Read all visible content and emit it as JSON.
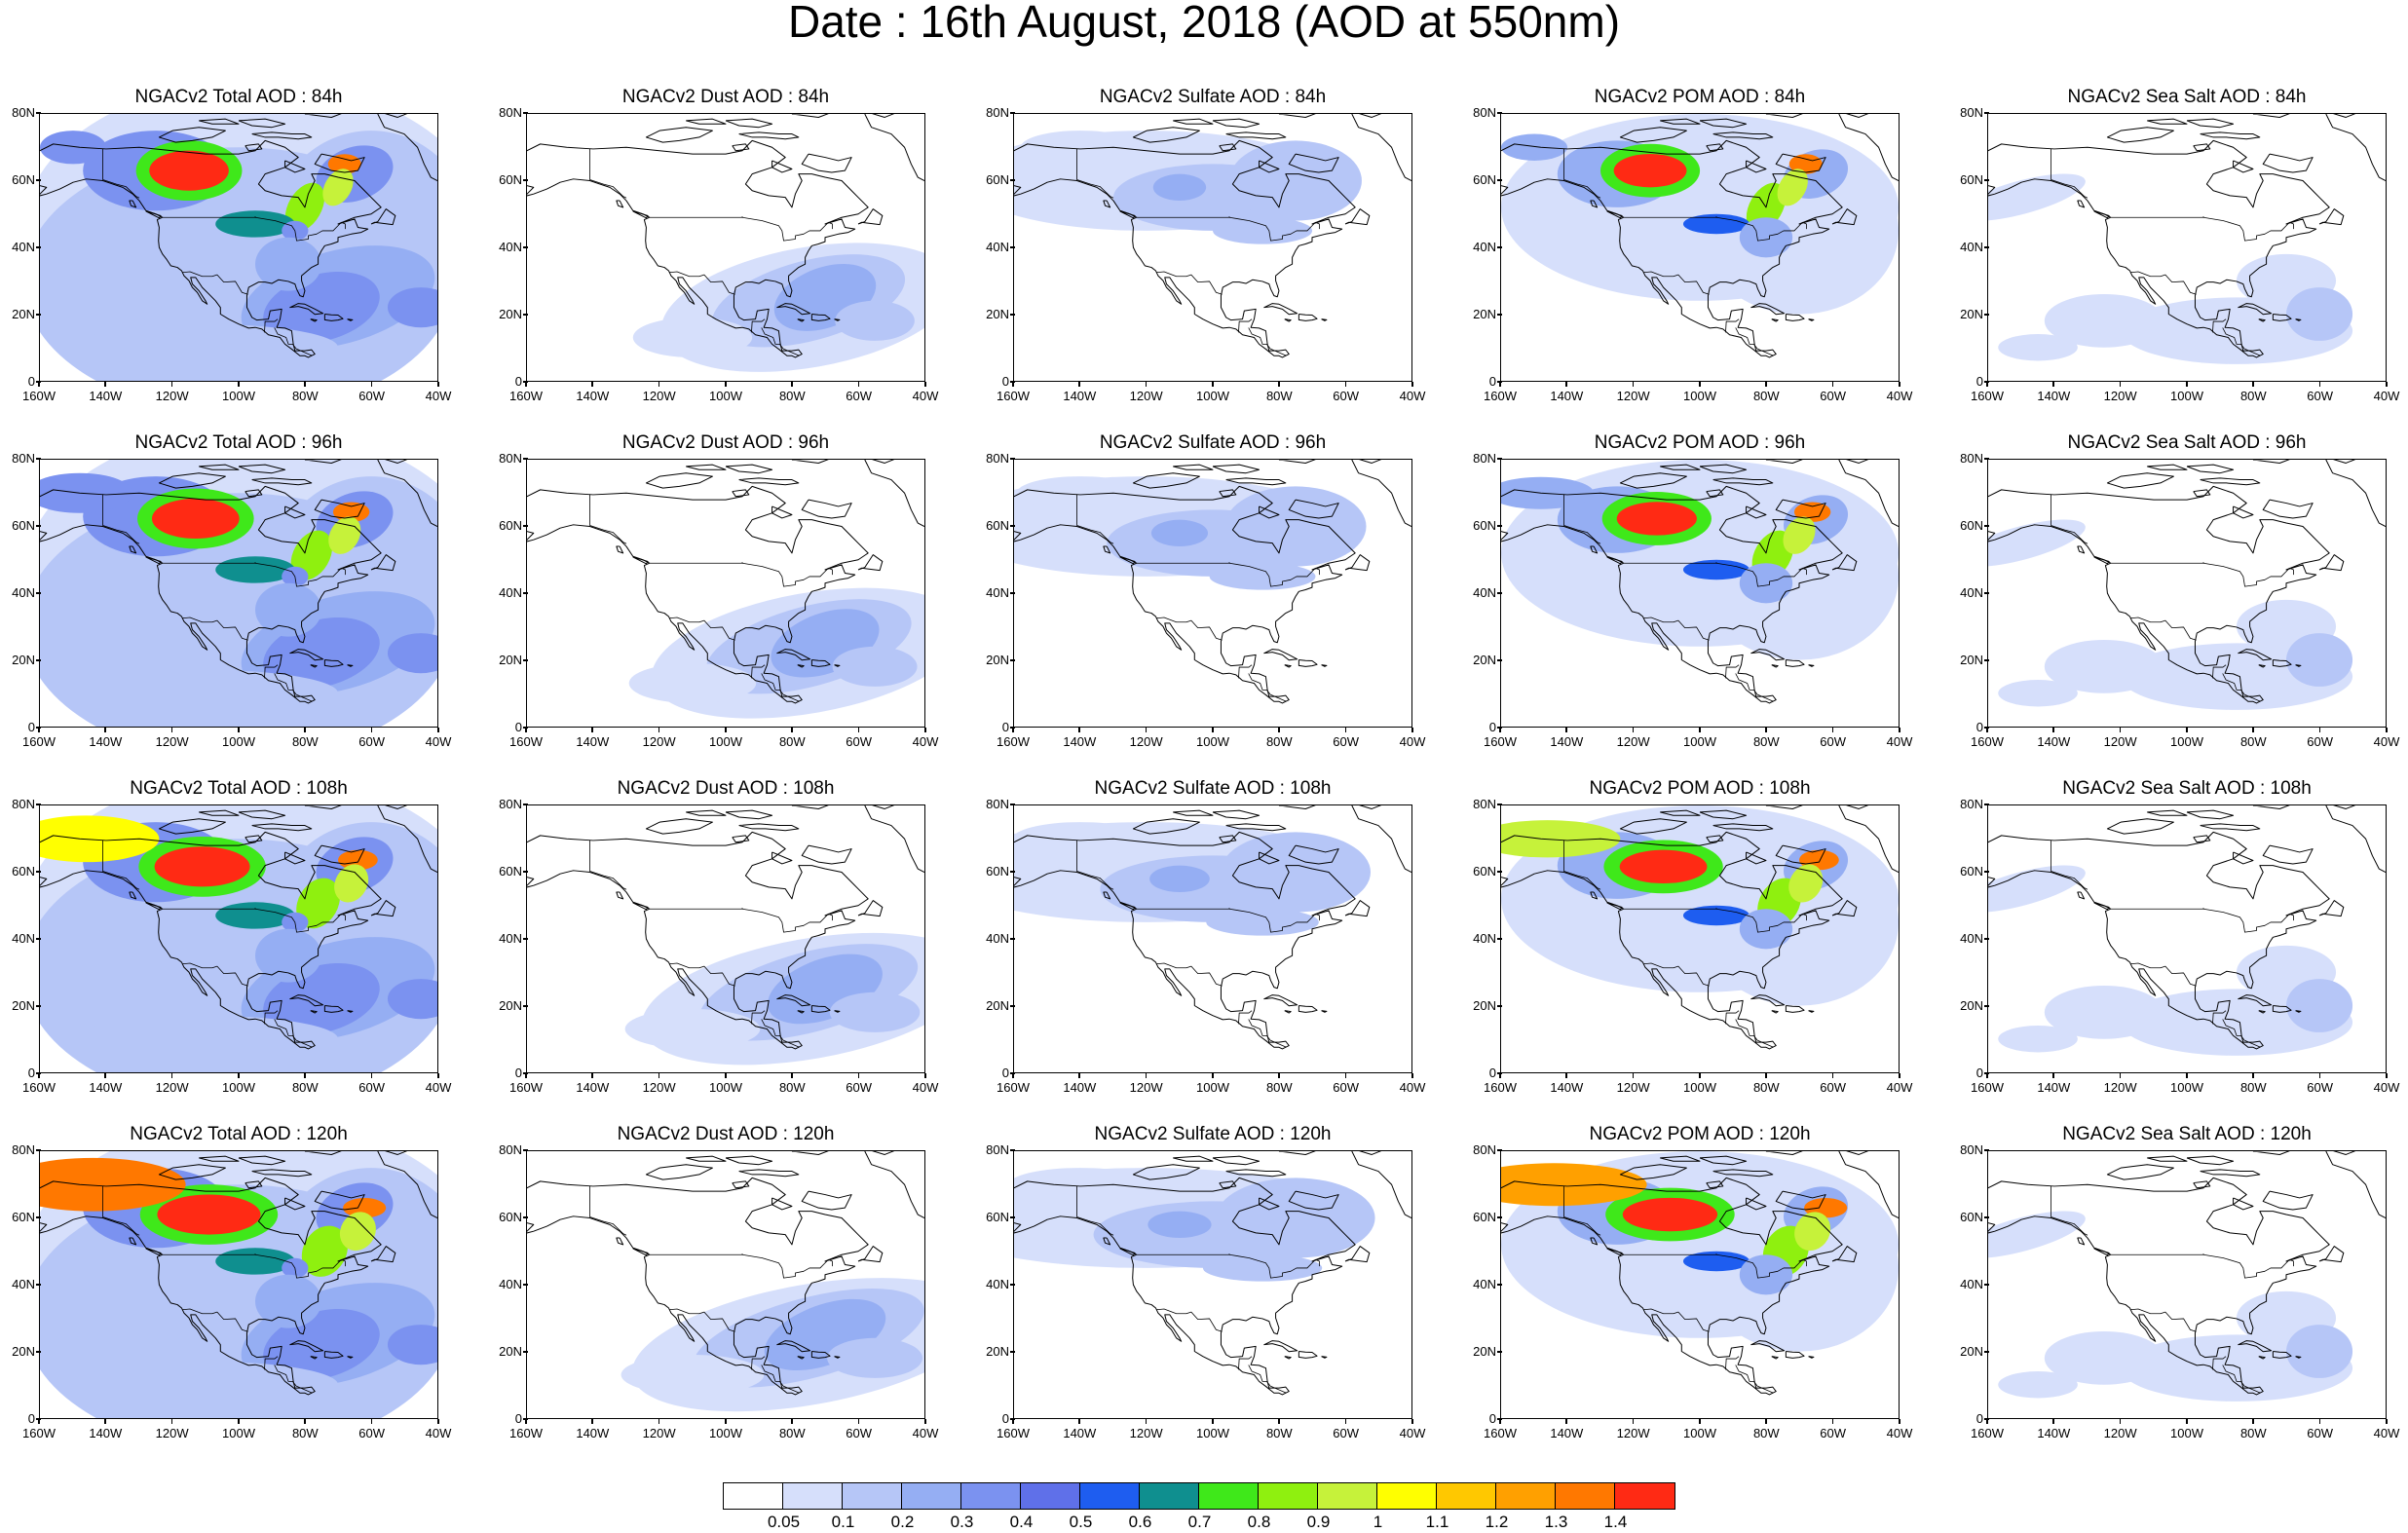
{
  "title": "Date : 16th August, 2018 (AOD at 550nm)",
  "lat_ticks": [
    "0",
    "20N",
    "40N",
    "60N",
    "80N"
  ],
  "lon_ticks": [
    "160W",
    "140W",
    "120W",
    "100W",
    "80W",
    "60W",
    "40W"
  ],
  "panels": [
    [
      {
        "title": "NGACv2 Total AOD : 84h",
        "species": "total",
        "hour": 84
      },
      {
        "title": "NGACv2 Dust AOD : 84h",
        "species": "dust",
        "hour": 84
      },
      {
        "title": "NGACv2 Sulfate AOD : 84h",
        "species": "sulfate",
        "hour": 84
      },
      {
        "title": "NGACv2 POM AOD : 84h",
        "species": "pom",
        "hour": 84
      },
      {
        "title": "NGACv2 Sea Salt AOD : 84h",
        "species": "seasalt",
        "hour": 84
      }
    ],
    [
      {
        "title": "NGACv2 Total AOD : 96h",
        "species": "total",
        "hour": 96
      },
      {
        "title": "NGACv2 Dust AOD : 96h",
        "species": "dust",
        "hour": 96
      },
      {
        "title": "NGACv2 Sulfate AOD : 96h",
        "species": "sulfate",
        "hour": 96
      },
      {
        "title": "NGACv2 POM AOD : 96h",
        "species": "pom",
        "hour": 96
      },
      {
        "title": "NGACv2 Sea Salt AOD : 96h",
        "species": "seasalt",
        "hour": 96
      }
    ],
    [
      {
        "title": "NGACv2 Total AOD : 108h",
        "species": "total",
        "hour": 108
      },
      {
        "title": "NGACv2 Dust AOD : 108h",
        "species": "dust",
        "hour": 108
      },
      {
        "title": "NGACv2 Sulfate AOD : 108h",
        "species": "sulfate",
        "hour": 108
      },
      {
        "title": "NGACv2 POM AOD : 108h",
        "species": "pom",
        "hour": 108
      },
      {
        "title": "NGACv2 Sea Salt AOD : 108h",
        "species": "seasalt",
        "hour": 108
      }
    ],
    [
      {
        "title": "NGACv2 Total AOD : 120h",
        "species": "total",
        "hour": 120
      },
      {
        "title": "NGACv2 Dust AOD : 120h",
        "species": "dust",
        "hour": 120
      },
      {
        "title": "NGACv2 Sulfate AOD : 120h",
        "species": "sulfate",
        "hour": 120
      },
      {
        "title": "NGACv2 POM AOD : 120h",
        "species": "pom",
        "hour": 120
      },
      {
        "title": "NGACv2 Sea Salt  AOD : 120h",
        "species": "seasalt",
        "hour": 120
      }
    ]
  ],
  "colorbar": {
    "colors": [
      "#ffffff",
      "#d6dffb",
      "#b6c6f7",
      "#95aef3",
      "#7b92f0",
      "#5f70e9",
      "#1e5df0",
      "#0f8f8f",
      "#3fe81a",
      "#8ff00f",
      "#c6f23a",
      "#ffff00",
      "#ffc800",
      "#ffa000",
      "#ff7800",
      "#ff2a14"
    ],
    "labels": [
      "0.05",
      "0.1",
      "0.2",
      "0.3",
      "0.4",
      "0.5",
      "0.6",
      "0.7",
      "0.8",
      "0.9",
      "1",
      "1.1",
      "1.2",
      "1.3",
      "1.4"
    ]
  }
}
